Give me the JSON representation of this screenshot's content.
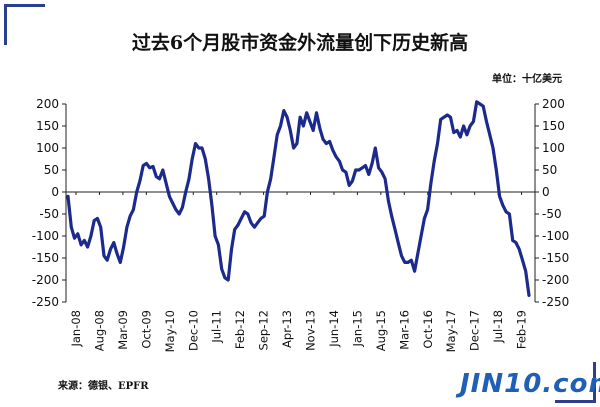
{
  "title": "过去6个月股市资金外流量创下历史新高",
  "unit_label": "单位：十亿美元",
  "source_label": "来源：德银、EPFR",
  "watermark": "JIN10.com",
  "colors": {
    "line": "#1b2a8c",
    "frame_accent": "#2c3f8f",
    "watermark": "#1f5fb5"
  },
  "chart_data": {
    "type": "line",
    "title": "过去6个月股市资金外流量创下历史新高",
    "xlabel": "",
    "ylabel": "",
    "ylim": [
      -250,
      200
    ],
    "yticks": [
      200,
      150,
      100,
      50,
      0,
      -50,
      -100,
      -150,
      -200,
      -250
    ],
    "ytick_labels": [
      "200",
      "150",
      "100",
      "50",
      "0",
      "-50",
      "-100",
      "-150",
      "-200",
      "-250"
    ],
    "xtick_labels": [
      "Jan-08",
      "Aug-08",
      "Mar-09",
      "Oct-09",
      "May-10",
      "Dec-10",
      "Jul-11",
      "Feb-12",
      "Sep-12",
      "Apr-13",
      "Nov-13",
      "Jun-14",
      "Jan-15",
      "Aug-15",
      "Mar-16",
      "Oct-16",
      "May-17",
      "Dec-17",
      "Jul-18",
      "Feb-19"
    ],
    "grid": false,
    "series": [
      {
        "values": [
          -10,
          -80,
          -105,
          -95,
          -120,
          -110,
          -125,
          -100,
          -65,
          -60,
          -80,
          -145,
          -155,
          -130,
          -115,
          -140,
          -160,
          -125,
          -80,
          -55,
          -40,
          0,
          25,
          60,
          65,
          55,
          58,
          35,
          30,
          50,
          20,
          -10,
          -25,
          -40,
          -50,
          -35,
          0,
          30,
          75,
          110,
          100,
          100,
          75,
          30,
          -30,
          -100,
          -120,
          -175,
          -195,
          -200,
          -130,
          -85,
          -75,
          -60,
          -45,
          -50,
          -70,
          -80,
          -70,
          -60,
          -55,
          0,
          30,
          80,
          130,
          150,
          185,
          170,
          140,
          100,
          110,
          170,
          150,
          180,
          160,
          140,
          180,
          145,
          120,
          110,
          115,
          95,
          80,
          70,
          50,
          45,
          15,
          25,
          50,
          50,
          55,
          60,
          40,
          65,
          100,
          55,
          45,
          30,
          -20,
          -55,
          -85,
          -115,
          -145,
          -160,
          -160,
          -155,
          -180,
          -140,
          -100,
          -60,
          -40,
          20,
          70,
          110,
          165,
          170,
          175,
          170,
          135,
          140,
          125,
          150,
          130,
          150,
          160,
          205,
          200,
          195,
          160,
          130,
          100,
          50,
          -10,
          -30,
          -45,
          -50,
          -110,
          -115,
          -130,
          -155,
          -180,
          -235
        ]
      }
    ]
  }
}
